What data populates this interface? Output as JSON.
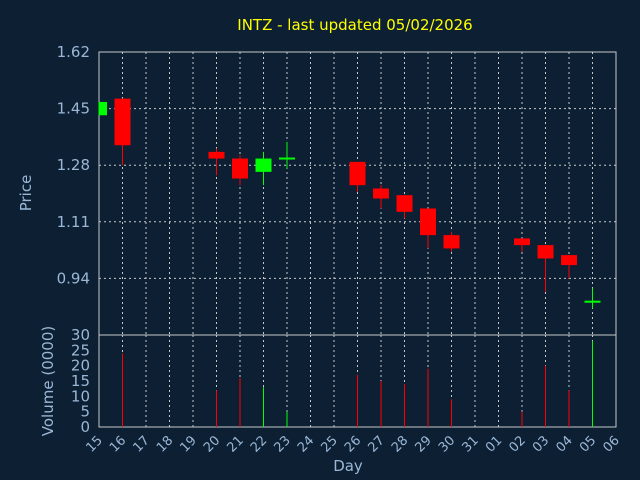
{
  "chart_data": {
    "type": "candlestick",
    "title": "INTZ - last updated 05/02/2026",
    "xlabel": "Day",
    "price_panel": {
      "ylabel": "Price",
      "yticks": [
        "1.62",
        "1.45",
        "1.28",
        "1.11",
        "0.94"
      ],
      "ylim": [
        0.77,
        1.62
      ]
    },
    "volume_panel": {
      "ylabel": "Volume (0000)",
      "yticks": [
        "30",
        "25",
        "20",
        "15",
        "10",
        "5",
        "0"
      ],
      "ylim": [
        0,
        30
      ]
    },
    "x_tick_labels": [
      "15",
      "16",
      "17",
      "18",
      "19",
      "20",
      "21",
      "22",
      "23",
      "24",
      "25",
      "26",
      "27",
      "28",
      "29",
      "30",
      "31",
      "01",
      "02",
      "03",
      "04",
      "05",
      "06"
    ],
    "up_color": "#00ff00",
    "down_color": "#ff0000",
    "candles": [
      {
        "day": "15",
        "open": 1.43,
        "high": 1.47,
        "low": 1.43,
        "close": 1.47,
        "volume": 0
      },
      {
        "day": "16",
        "open": 1.48,
        "high": 1.48,
        "low": 1.28,
        "close": 1.34,
        "volume": 24
      },
      {
        "day": "20",
        "open": 1.32,
        "high": 1.33,
        "low": 1.25,
        "close": 1.3,
        "volume": 12
      },
      {
        "day": "21",
        "open": 1.3,
        "high": 1.31,
        "low": 1.22,
        "close": 1.24,
        "volume": 16
      },
      {
        "day": "22",
        "open": 1.26,
        "high": 1.32,
        "low": 1.22,
        "close": 1.3,
        "volume": 13
      },
      {
        "day": "23",
        "open": 1.3,
        "high": 1.35,
        "low": 1.27,
        "close": 1.3,
        "volume": 5
      },
      {
        "day": "26",
        "open": 1.29,
        "high": 1.29,
        "low": 1.2,
        "close": 1.22,
        "volume": 17
      },
      {
        "day": "27",
        "open": 1.21,
        "high": 1.22,
        "low": 1.15,
        "close": 1.18,
        "volume": 15
      },
      {
        "day": "28",
        "open": 1.19,
        "high": 1.19,
        "low": 1.12,
        "close": 1.14,
        "volume": 14
      },
      {
        "day": "29",
        "open": 1.15,
        "high": 1.15,
        "low": 1.03,
        "close": 1.07,
        "volume": 19
      },
      {
        "day": "30",
        "open": 1.07,
        "high": 1.08,
        "low": 1.02,
        "close": 1.03,
        "volume": 9
      },
      {
        "day": "02",
        "open": 1.06,
        "high": 1.06,
        "low": 1.02,
        "close": 1.04,
        "volume": 5
      },
      {
        "day": "03",
        "open": 1.04,
        "high": 1.04,
        "low": 0.9,
        "close": 1.0,
        "volume": 20
      },
      {
        "day": "04",
        "open": 1.01,
        "high": 1.01,
        "low": 0.94,
        "close": 0.98,
        "volume": 12
      },
      {
        "day": "05",
        "open": 0.87,
        "high": 0.91,
        "low": 0.85,
        "close": 0.87,
        "volume": 28
      }
    ]
  }
}
